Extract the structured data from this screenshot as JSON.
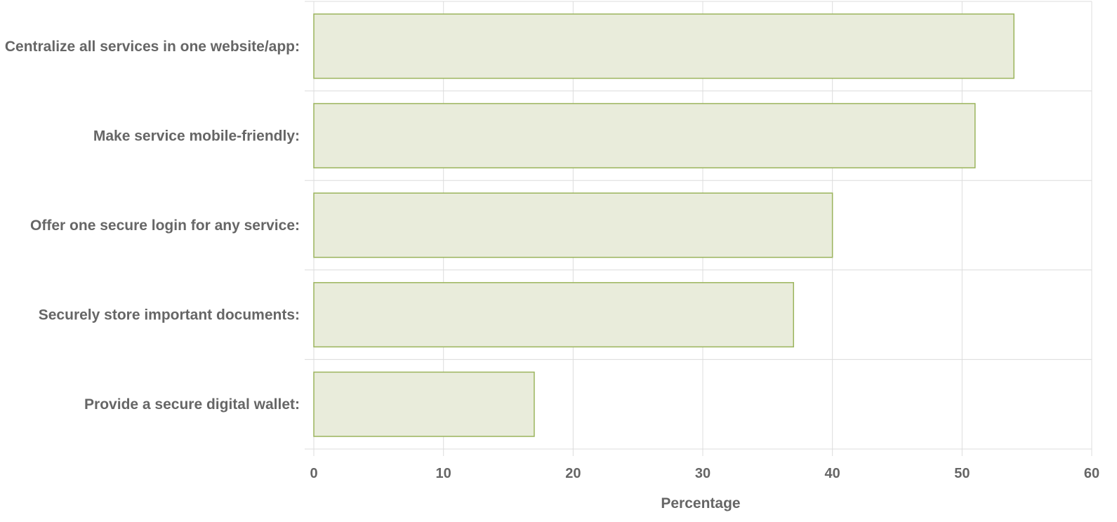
{
  "chart_data": {
    "type": "bar",
    "orientation": "horizontal",
    "categories": [
      "Centralize all services in one website/app:",
      "Make service mobile-friendly:",
      "Offer one secure login for any service:",
      "Securely store important documents:",
      "Provide a secure digital wallet:"
    ],
    "values": [
      54,
      51,
      40,
      37,
      17
    ],
    "xlabel": "Percentage",
    "ylabel": "",
    "xlim": [
      0,
      60
    ],
    "xticks": [
      "0",
      "10",
      "20",
      "30",
      "40",
      "50",
      "60"
    ],
    "grid": true,
    "colors": {
      "bar_fill": "#e9ecdb",
      "bar_stroke": "#9bb45c",
      "grid": "#dcdcdc",
      "text": "#666666"
    }
  }
}
